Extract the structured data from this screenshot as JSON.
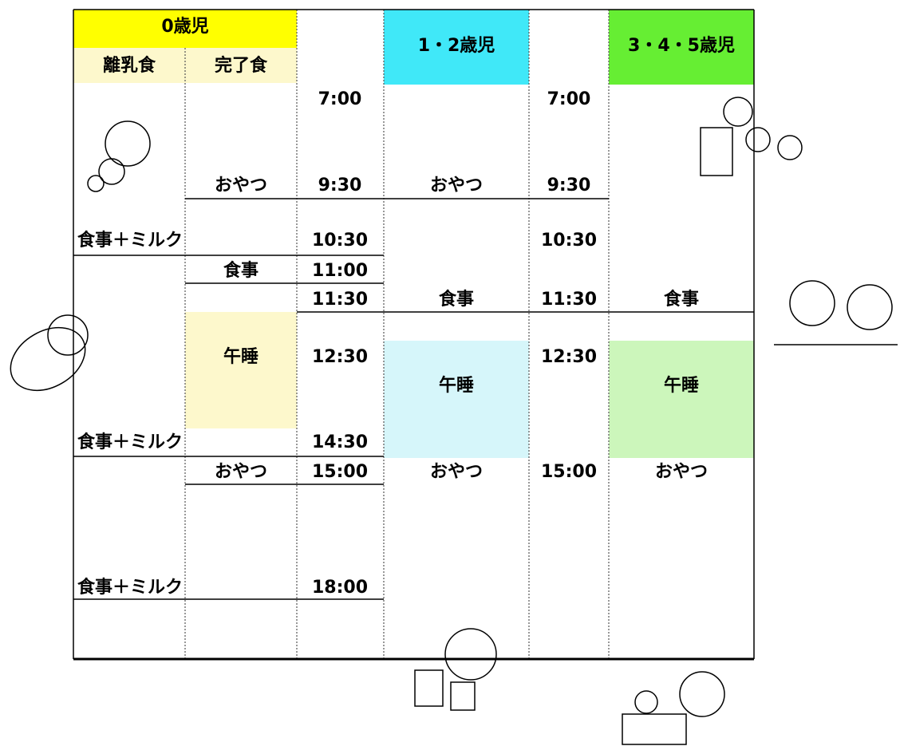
{
  "header": {
    "infant": "0歳児",
    "weaning": "離乳食",
    "completion": "完了食",
    "toddler": "1・2歳児",
    "preschool": "3・4・5歳児"
  },
  "schedule": {
    "infant_weaning": [
      "食事＋ミルク",
      "食事＋ミルク",
      "食事＋ミルク"
    ],
    "infant_completion": [
      "おやつ",
      "食事",
      "午睡",
      "おやつ"
    ],
    "times_infant": [
      "7:00",
      "9:30",
      "10:30",
      "11:00",
      "11:30",
      "12:30",
      "14:30",
      "15:00",
      "18:00"
    ],
    "toddler": [
      "おやつ",
      "食事",
      "午睡",
      "おやつ"
    ],
    "times_older": [
      "7:00",
      "9:30",
      "10:30",
      "11:30",
      "12:30",
      "15:00"
    ],
    "preschool": [
      "食事",
      "午睡",
      "おやつ"
    ]
  }
}
